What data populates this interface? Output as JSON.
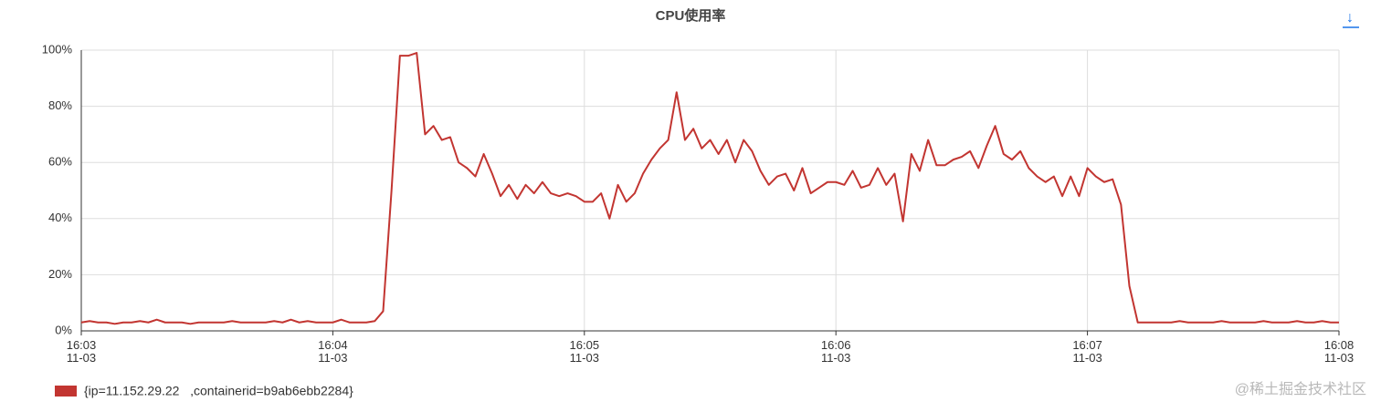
{
  "chart_data": {
    "type": "line",
    "title": "CPU使用率",
    "categories": [
      "16:03\n11-03",
      null,
      null,
      null,
      null,
      null,
      null,
      null,
      null,
      null,
      null,
      null,
      null,
      null,
      null,
      null,
      null,
      null,
      null,
      null,
      null,
      null,
      null,
      null,
      null,
      null,
      null,
      null,
      null,
      null,
      "16:04\n11-03",
      null,
      null,
      null,
      null,
      null,
      null,
      null,
      null,
      null,
      null,
      null,
      null,
      null,
      null,
      null,
      null,
      null,
      null,
      null,
      null,
      null,
      null,
      null,
      null,
      null,
      null,
      null,
      null,
      null,
      "16:05\n11-03",
      null,
      null,
      null,
      null,
      null,
      null,
      null,
      null,
      null,
      null,
      null,
      null,
      null,
      null,
      null,
      null,
      null,
      null,
      null,
      null,
      null,
      null,
      null,
      null,
      null,
      null,
      null,
      null,
      null,
      "16:06\n11-03",
      null,
      null,
      null,
      null,
      null,
      null,
      null,
      null,
      null,
      null,
      null,
      null,
      null,
      null,
      null,
      null,
      null,
      null,
      null,
      null,
      null,
      null,
      null,
      null,
      null,
      null,
      null,
      null,
      null,
      "16:07\n11-03",
      null,
      null,
      null,
      null,
      null,
      null,
      null,
      null,
      null,
      null,
      null,
      null,
      null,
      null,
      null,
      null,
      null,
      null,
      null,
      null,
      null,
      null,
      null,
      null,
      null,
      null,
      null,
      null,
      null,
      "16:08\n11-03"
    ],
    "series": [
      {
        "name": "{ip=11.152.29.22   ,containerid=b9ab6ebb2284}",
        "color": "#c23531",
        "values": [
          3,
          3.5,
          3,
          3,
          2.5,
          3,
          3,
          3.5,
          3,
          4,
          3,
          3,
          3,
          2.5,
          3,
          3,
          3,
          3,
          3.5,
          3,
          3,
          3,
          3,
          3.5,
          3,
          4,
          3,
          3.5,
          3,
          3,
          3,
          4,
          3,
          3,
          3,
          3.5,
          7,
          50,
          98,
          98,
          99,
          70,
          73,
          68,
          69,
          60,
          58,
          55,
          63,
          56,
          48,
          52,
          47,
          52,
          49,
          53,
          49,
          48,
          49,
          48,
          46,
          46,
          49,
          40,
          52,
          46,
          49,
          56,
          61,
          65,
          68,
          85,
          68,
          72,
          65,
          68,
          63,
          68,
          60,
          68,
          64,
          57,
          52,
          55,
          56,
          50,
          58,
          49,
          51,
          53,
          53,
          52,
          57,
          51,
          52,
          58,
          52,
          56,
          39,
          63,
          57,
          68,
          59,
          59,
          61,
          62,
          64,
          58,
          66,
          73,
          63,
          61,
          64,
          58,
          55,
          53,
          55,
          48,
          55,
          48,
          58,
          55,
          53,
          54,
          45,
          16,
          3,
          3,
          3,
          3,
          3,
          3.5,
          3,
          3,
          3,
          3,
          3.5,
          3,
          3,
          3,
          3,
          3.5,
          3,
          3,
          3,
          3.5,
          3,
          3,
          3.5,
          3,
          3
        ]
      }
    ],
    "ylim": [
      0,
      100
    ],
    "yticks": [
      {
        "value": 0,
        "label": "0%"
      },
      {
        "value": 20,
        "label": "20%"
      },
      {
        "value": 40,
        "label": "40%"
      },
      {
        "value": 60,
        "label": "60%"
      },
      {
        "value": 80,
        "label": "80%"
      },
      {
        "value": 100,
        "label": "100%"
      }
    ],
    "grid": true,
    "download_icon": "↓",
    "watermark": "@稀土掘金技术社区"
  }
}
